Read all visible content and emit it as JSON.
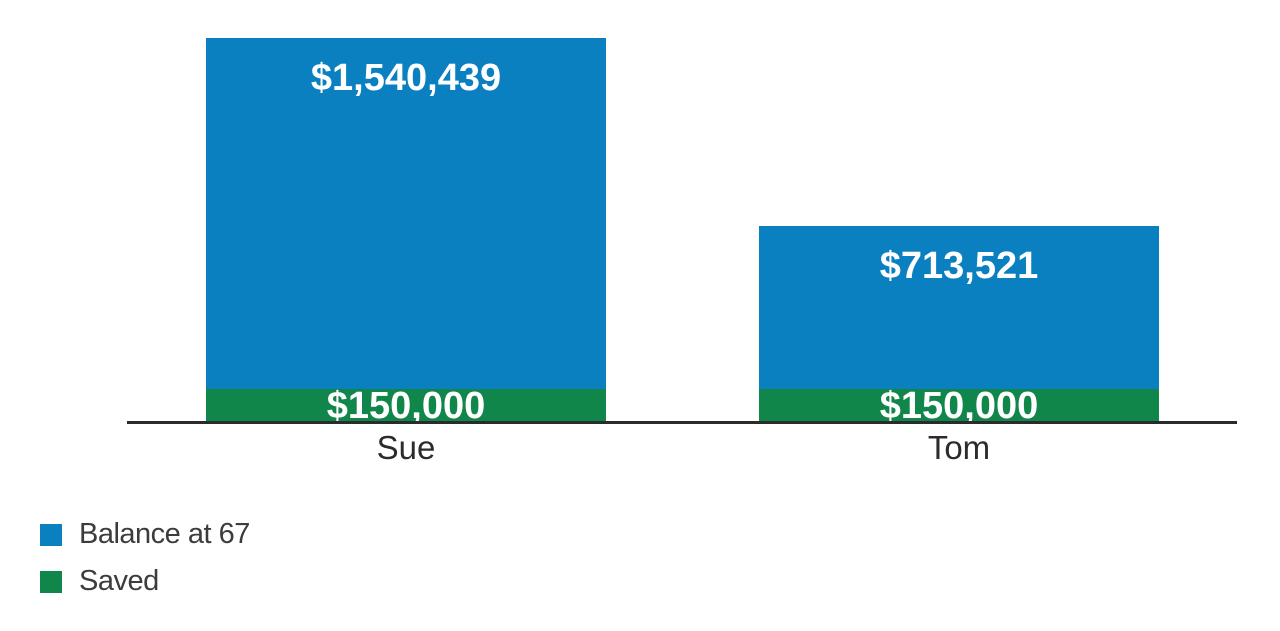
{
  "chart_data": {
    "type": "bar",
    "variant": "stacked-column",
    "orientation": "vertical",
    "categories": [
      "Sue",
      "Tom"
    ],
    "series": [
      {
        "name": "Balance at 67",
        "color": "#0b80c0",
        "values": [
          1540439,
          713521
        ],
        "labels": [
          "$1,540,439",
          "$713,521"
        ]
      },
      {
        "name": "Saved",
        "color": "#11864a",
        "values": [
          150000,
          150000
        ],
        "labels": [
          "$150,000",
          "$150,000"
        ]
      }
    ],
    "stack_totals": [
      1690439,
      863521
    ],
    "value_axis": {
      "visible": false,
      "min": 0,
      "max": 1690439
    },
    "grid": false,
    "legend_position": "bottom-left",
    "data_label_color": "#ffffff",
    "axis_line_color": "#2b2b2b",
    "category_label_color": "#2b2b2b",
    "legend_text_color": "#3c3c3c",
    "background_color": "#ffffff"
  }
}
